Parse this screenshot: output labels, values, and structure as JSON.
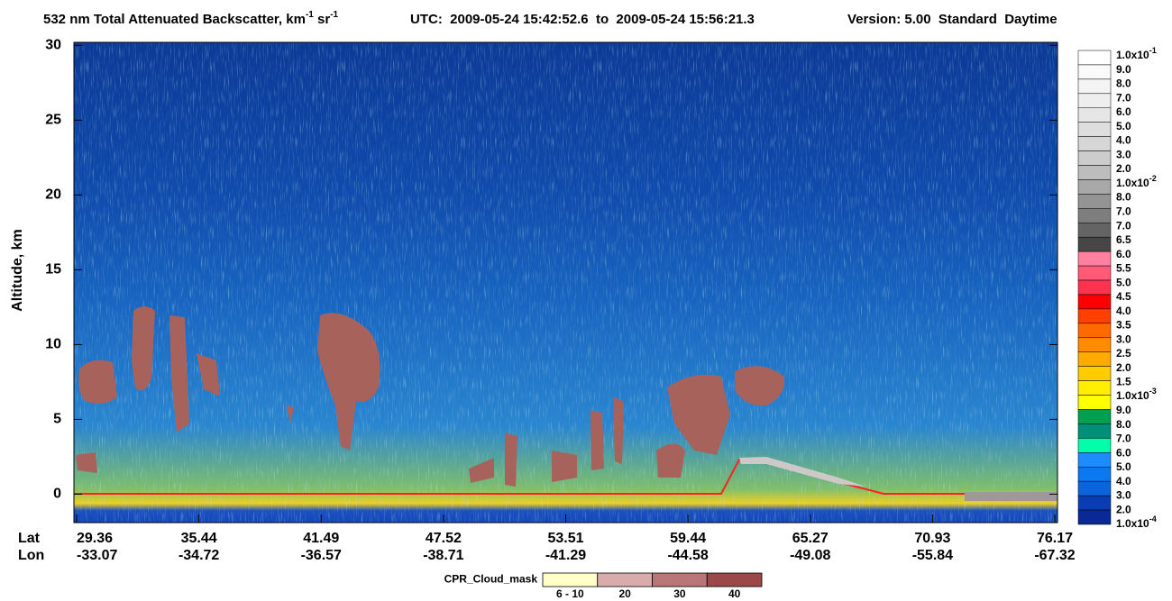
{
  "chart_data": {
    "type": "curtain",
    "title": {
      "text": "532 nm Total Attenuated Backscatter, km",
      "exp1": "-1",
      "unit2": " sr",
      "exp2": "-1"
    },
    "utc": "UTC:  2009-05-24 15:42:52.6  to  2009-05-24 15:56:21.3",
    "version": "Version: 5.00  Standard  Daytime",
    "ylabel": "Altitude, km",
    "ylim": [
      -1.9,
      30.2
    ],
    "yticks": [
      0,
      5,
      10,
      15,
      20,
      25,
      30
    ],
    "x_rows": [
      {
        "name": "Lat",
        "labels": [
          "29.36",
          "35.44",
          "41.49",
          "47.52",
          "53.51",
          "59.44",
          "65.27",
          "70.93",
          "76.17"
        ]
      },
      {
        "name": "Lon",
        "labels": [
          "-33.07",
          "-34.72",
          "-36.57",
          "-38.71",
          "-41.29",
          "-44.58",
          "-49.08",
          "-55.84",
          "-67.32"
        ]
      }
    ],
    "colorbar": {
      "labels": [
        {
          "text": "1.0x10",
          "sup": "-1"
        },
        "9.0",
        "8.0",
        "7.0",
        "6.0",
        "5.0",
        "4.0",
        "3.0",
        "2.0",
        {
          "text": "1.0x10",
          "sup": "-2"
        },
        "8.0",
        "7.0",
        "7.0",
        "6.5",
        "6.0",
        "5.5",
        "5.0",
        "4.5",
        "4.0",
        "3.5",
        "3.0",
        "2.5",
        "2.0",
        "1.5",
        {
          "text": "1.0x10",
          "sup": "-3"
        },
        "9.0",
        "8.0",
        "7.0",
        "6.0",
        "5.0",
        "4.0",
        "3.0",
        "2.0",
        {
          "text": "1.0x10",
          "sup": "-4"
        }
      ],
      "colors": [
        "#ffffff",
        "#fafafa",
        "#f4f4f4",
        "#eeeeee",
        "#e6e6e6",
        "#dedede",
        "#d6d6d6",
        "#cccccc",
        "#bdbdbd",
        "#a8a8a8",
        "#949494",
        "#7e7e7e",
        "#646464",
        "#464646",
        "#ff80a0",
        "#ff5a78",
        "#ff3250",
        "#ff0000",
        "#ff4000",
        "#ff6a00",
        "#ff8c00",
        "#ffaa00",
        "#ffcc00",
        "#ffee00",
        "#ffff00",
        "#00a050",
        "#00907a",
        "#00ffa8",
        "#1e8cff",
        "#0a78f0",
        "#0a64dc",
        "#0a3cb4",
        "#0a2896"
      ]
    },
    "cloud_mask": {
      "title": "CPR_Cloud_mask",
      "labels": [
        "6 - 10",
        "20",
        "30",
        "40"
      ],
      "colors": [
        "#ffffc8",
        "#d8acac",
        "#b87676",
        "#9a4848"
      ]
    }
  }
}
